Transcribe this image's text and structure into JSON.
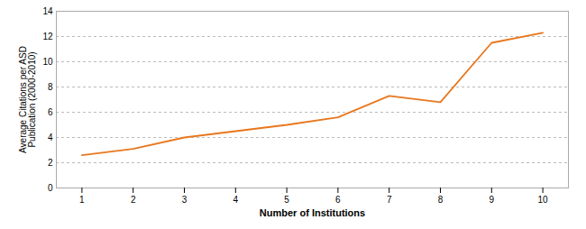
{
  "chart_data": {
    "type": "line",
    "x": [
      1,
      2,
      3,
      4,
      5,
      6,
      7,
      8,
      9,
      10
    ],
    "values": [
      2.6,
      3.1,
      4.0,
      4.5,
      5.0,
      5.6,
      7.3,
      6.8,
      11.5,
      12.3
    ],
    "color": "#E8771E",
    "xlabel": "Number of Institutions",
    "ylabel": "Average Citations per ASD\nPublication (2000-2010)",
    "xlim": [
      0.5,
      10.5
    ],
    "ylim": [
      0,
      14
    ],
    "xticks": [
      1,
      2,
      3,
      4,
      5,
      6,
      7,
      8,
      9,
      10
    ],
    "yticks": [
      0,
      2,
      4,
      6,
      8,
      10,
      12,
      14
    ],
    "grid": true
  }
}
